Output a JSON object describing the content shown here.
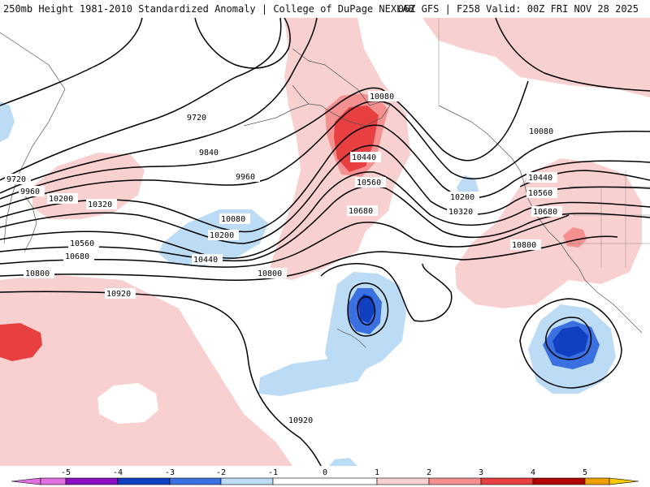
{
  "header": {
    "title_left": "250mb Height 1981-2010 Standardized Anomaly | College of DuPage NEXLAB",
    "title_right": "06Z GFS | F258 Valid: 00Z FRI NOV 28 2025"
  },
  "colors": {
    "neg5": "#e070e0",
    "neg4": "#8c10c0",
    "neg3": "#1040c0",
    "neg2": "#3a70e0",
    "neg1": "#bcdcf6",
    "zero": "#ffffff",
    "pos1": "#f8d0d0",
    "pos2": "#f49090",
    "pos3": "#e84040",
    "pos4": "#b00000",
    "pos5": "#f0a000",
    "pos5b": "#f8c800"
  },
  "contour_labels": {
    "l9720a": "9720",
    "l9720b": "9720",
    "l9840": "9840",
    "l9960a": "9960",
    "l9960b": "9960",
    "l10080a": "10080",
    "l10080b": "10080",
    "l10080c": "10080",
    "l10200a": "10200",
    "l10200b": "10200",
    "l10200c": "10200",
    "l10320a": "10320",
    "l10320b": "10320",
    "l10440a": "10440",
    "l10440b": "10440",
    "l10440c": "10440",
    "l10560a": "10560",
    "l10560b": "10560",
    "l10560c": "10560",
    "l10680a": "10680",
    "l10680b": "10680",
    "l10680c": "10680",
    "l10800a": "10800",
    "l10800b": "10800",
    "l10800c": "10800",
    "l10920a": "10920",
    "l10920b": "10920"
  },
  "colorbar": {
    "ticks": [
      "-5",
      "-4",
      "-3",
      "-2",
      "-1",
      "0",
      "1",
      "2",
      "3",
      "4",
      "5"
    ]
  }
}
